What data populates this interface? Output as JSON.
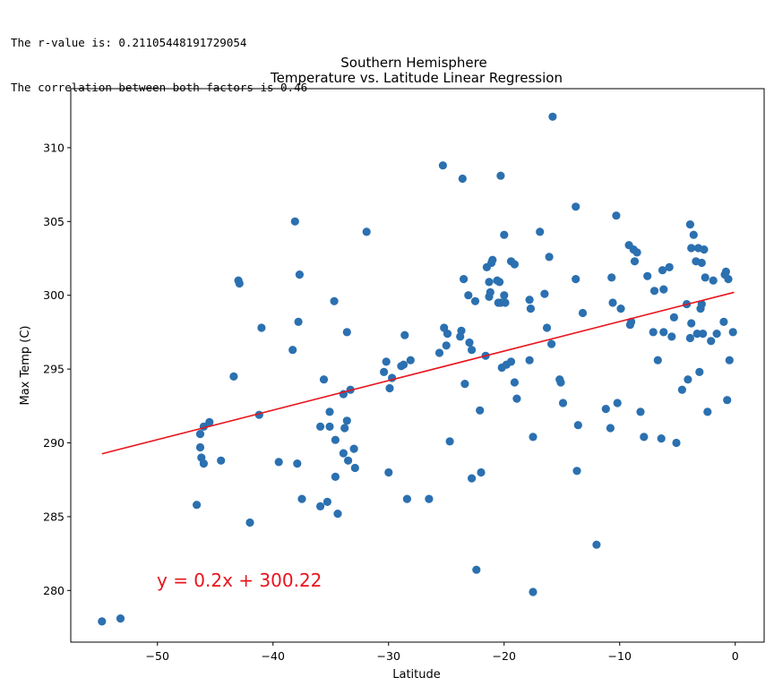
{
  "output": {
    "line1": "The r-value is: 0.21105448191729054",
    "line2": "The correlation between both factors is 0.46"
  },
  "colors": {
    "points": "#2b70b0",
    "regression": "#e8141c",
    "equation": "#e8141c"
  },
  "chart_data": {
    "type": "scatter",
    "title": "Southern Hemisphere",
    "subtitle": "Temperature vs. Latitude Linear Regression",
    "xlabel": "Latitude",
    "ylabel": "Max Temp (C)",
    "xlim": [
      -57.5,
      2.5
    ],
    "ylim": [
      276.5,
      314.0
    ],
    "xticks": [
      -50,
      -40,
      -30,
      -20,
      -10,
      0
    ],
    "yticks": [
      280,
      285,
      290,
      295,
      300,
      305,
      310
    ],
    "xtick_labels": [
      "−50",
      "−40",
      "−30",
      "−20",
      "−10",
      "0"
    ],
    "ytick_labels": [
      "280",
      "285",
      "290",
      "295",
      "300",
      "305",
      "310"
    ],
    "grid": false,
    "annotation": "y = 0.2x + 300.22",
    "regression": {
      "slope": 0.2,
      "intercept": 300.22,
      "x_start": -54.8,
      "x_end": -0.1
    },
    "points": [
      [
        -54.8,
        277.9
      ],
      [
        -53.2,
        278.1
      ],
      [
        -46.6,
        285.8
      ],
      [
        -46.3,
        290.6
      ],
      [
        -46.3,
        289.7
      ],
      [
        -46.2,
        289.0
      ],
      [
        -46.0,
        288.6
      ],
      [
        -46.0,
        291.1
      ],
      [
        -45.5,
        291.4
      ],
      [
        -44.5,
        288.8
      ],
      [
        -43.4,
        294.5
      ],
      [
        -43.0,
        301.0
      ],
      [
        -42.9,
        300.8
      ],
      [
        -42.0,
        284.6
      ],
      [
        -41.2,
        291.9
      ],
      [
        -41.0,
        297.8
      ],
      [
        -39.5,
        288.7
      ],
      [
        -38.3,
        296.3
      ],
      [
        -38.1,
        305.0
      ],
      [
        -37.9,
        288.6
      ],
      [
        -37.8,
        298.2
      ],
      [
        -37.7,
        301.4
      ],
      [
        -37.5,
        286.2
      ],
      [
        -35.9,
        291.1
      ],
      [
        -35.9,
        285.7
      ],
      [
        -35.6,
        294.3
      ],
      [
        -35.3,
        286.0
      ],
      [
        -35.1,
        291.1
      ],
      [
        -35.1,
        292.1
      ],
      [
        -34.7,
        299.6
      ],
      [
        -34.6,
        290.2
      ],
      [
        -34.6,
        287.7
      ],
      [
        -34.4,
        285.2
      ],
      [
        -33.9,
        293.3
      ],
      [
        -33.9,
        289.3
      ],
      [
        -33.8,
        291.0
      ],
      [
        -33.6,
        291.5
      ],
      [
        -33.6,
        297.5
      ],
      [
        -33.5,
        288.8
      ],
      [
        -33.3,
        293.6
      ],
      [
        -33.0,
        289.6
      ],
      [
        -32.9,
        288.3
      ],
      [
        -31.9,
        304.3
      ],
      [
        -30.4,
        294.8
      ],
      [
        -30.2,
        295.5
      ],
      [
        -30.0,
        288.0
      ],
      [
        -29.9,
        293.7
      ],
      [
        -29.7,
        294.4
      ],
      [
        -28.9,
        295.2
      ],
      [
        -28.7,
        295.3
      ],
      [
        -28.6,
        297.3
      ],
      [
        -28.4,
        286.2
      ],
      [
        -28.1,
        295.6
      ],
      [
        -26.5,
        286.2
      ],
      [
        -25.6,
        296.1
      ],
      [
        -25.3,
        308.8
      ],
      [
        -25.2,
        297.8
      ],
      [
        -25.0,
        296.6
      ],
      [
        -24.9,
        297.4
      ],
      [
        -24.7,
        290.1
      ],
      [
        -23.8,
        297.2
      ],
      [
        -23.7,
        297.6
      ],
      [
        -23.6,
        307.9
      ],
      [
        -23.5,
        301.1
      ],
      [
        -23.4,
        294.0
      ],
      [
        -23.1,
        300.0
      ],
      [
        -23.0,
        296.8
      ],
      [
        -22.8,
        296.3
      ],
      [
        -22.8,
        287.6
      ],
      [
        -22.5,
        299.6
      ],
      [
        -22.4,
        281.4
      ],
      [
        -22.1,
        292.2
      ],
      [
        -22.0,
        288.0
      ],
      [
        -21.6,
        295.9
      ],
      [
        -21.5,
        301.9
      ],
      [
        -21.3,
        299.9
      ],
      [
        -21.3,
        300.9
      ],
      [
        -21.2,
        300.2
      ],
      [
        -21.1,
        302.2
      ],
      [
        -21.0,
        302.4
      ],
      [
        -20.6,
        301.0
      ],
      [
        -20.5,
        299.5
      ],
      [
        -20.4,
        300.9
      ],
      [
        -20.3,
        299.5
      ],
      [
        -20.3,
        308.1
      ],
      [
        -20.2,
        295.1
      ],
      [
        -20.0,
        300.0
      ],
      [
        -20.0,
        304.1
      ],
      [
        -19.9,
        299.5
      ],
      [
        -19.8,
        295.3
      ],
      [
        -19.4,
        302.3
      ],
      [
        -19.4,
        295.5
      ],
      [
        -19.1,
        302.1
      ],
      [
        -19.1,
        294.1
      ],
      [
        -18.9,
        293.0
      ],
      [
        -17.8,
        299.7
      ],
      [
        -17.8,
        295.6
      ],
      [
        -17.7,
        299.1
      ],
      [
        -17.5,
        290.4
      ],
      [
        -17.5,
        279.9
      ],
      [
        -16.9,
        304.3
      ],
      [
        -16.5,
        300.1
      ],
      [
        -16.3,
        297.8
      ],
      [
        -16.1,
        302.6
      ],
      [
        -15.9,
        296.7
      ],
      [
        -15.8,
        312.1
      ],
      [
        -15.2,
        294.3
      ],
      [
        -15.1,
        294.1
      ],
      [
        -14.9,
        292.7
      ],
      [
        -13.8,
        306.0
      ],
      [
        -13.8,
        301.1
      ],
      [
        -13.7,
        288.1
      ],
      [
        -13.6,
        291.2
      ],
      [
        -13.2,
        298.8
      ],
      [
        -12.0,
        283.1
      ],
      [
        -11.2,
        292.3
      ],
      [
        -10.8,
        291.0
      ],
      [
        -10.7,
        301.2
      ],
      [
        -10.6,
        299.5
      ],
      [
        -10.3,
        305.4
      ],
      [
        -10.2,
        292.7
      ],
      [
        -9.9,
        299.1
      ],
      [
        -9.2,
        303.4
      ],
      [
        -9.1,
        298.0
      ],
      [
        -9.0,
        298.2
      ],
      [
        -8.8,
        303.1
      ],
      [
        -8.7,
        302.3
      ],
      [
        -8.5,
        302.9
      ],
      [
        -8.2,
        292.1
      ],
      [
        -7.9,
        290.4
      ],
      [
        -7.6,
        301.3
      ],
      [
        -7.1,
        297.5
      ],
      [
        -7.0,
        300.3
      ],
      [
        -6.7,
        295.6
      ],
      [
        -6.4,
        290.3
      ],
      [
        -6.3,
        301.7
      ],
      [
        -6.2,
        300.4
      ],
      [
        -6.2,
        297.5
      ],
      [
        -5.7,
        301.9
      ],
      [
        -5.5,
        297.2
      ],
      [
        -5.3,
        298.5
      ],
      [
        -5.1,
        290.0
      ],
      [
        -4.6,
        293.6
      ],
      [
        -4.2,
        299.4
      ],
      [
        -4.1,
        294.3
      ],
      [
        -3.9,
        304.8
      ],
      [
        -3.9,
        297.1
      ],
      [
        -3.8,
        298.1
      ],
      [
        -3.8,
        303.2
      ],
      [
        -3.6,
        304.1
      ],
      [
        -3.4,
        302.3
      ],
      [
        -3.3,
        297.4
      ],
      [
        -3.2,
        303.2
      ],
      [
        -3.1,
        294.8
      ],
      [
        -3.0,
        299.1
      ],
      [
        -2.9,
        299.4
      ],
      [
        -2.9,
        302.2
      ],
      [
        -2.8,
        297.4
      ],
      [
        -2.7,
        303.1
      ],
      [
        -2.6,
        301.2
      ],
      [
        -2.4,
        292.1
      ],
      [
        -2.1,
        296.9
      ],
      [
        -1.9,
        301.0
      ],
      [
        -1.6,
        297.4
      ],
      [
        -1.0,
        298.2
      ],
      [
        -0.9,
        301.4
      ],
      [
        -0.8,
        301.6
      ],
      [
        -0.7,
        292.9
      ],
      [
        -0.6,
        301.1
      ],
      [
        -0.5,
        295.6
      ],
      [
        -0.2,
        297.5
      ]
    ]
  }
}
